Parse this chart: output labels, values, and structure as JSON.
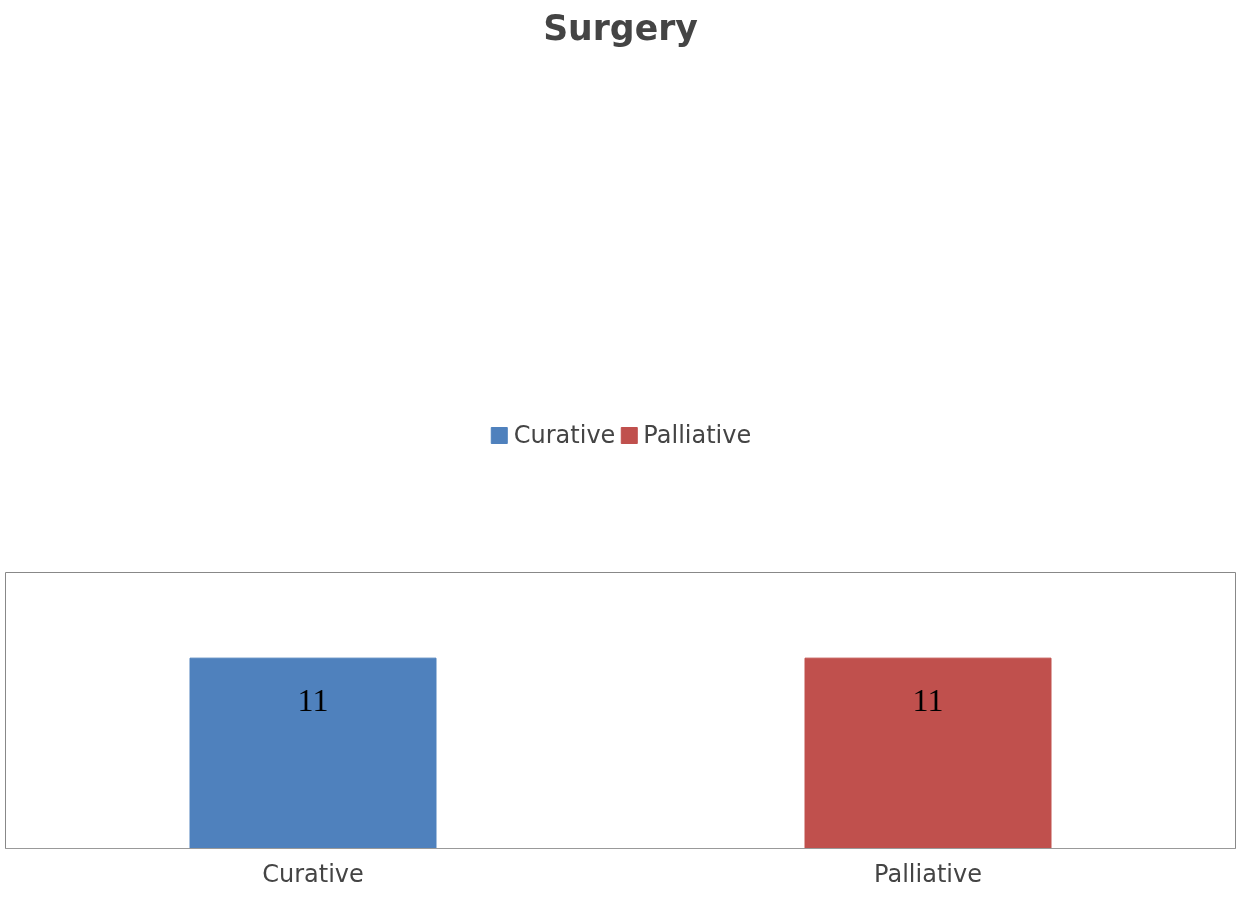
{
  "chart_data": {
    "type": "bar",
    "title": "Surgery",
    "categories": [
      "Curative",
      "Palliative"
    ],
    "series": [
      {
        "name": "Curative",
        "color": "#4f81bd",
        "values": [
          11,
          null
        ]
      },
      {
        "name": "Palliative",
        "color": "#c0504d",
        "values": [
          null,
          11
        ]
      }
    ],
    "data_labels": true,
    "legend": "top",
    "grid": false
  }
}
